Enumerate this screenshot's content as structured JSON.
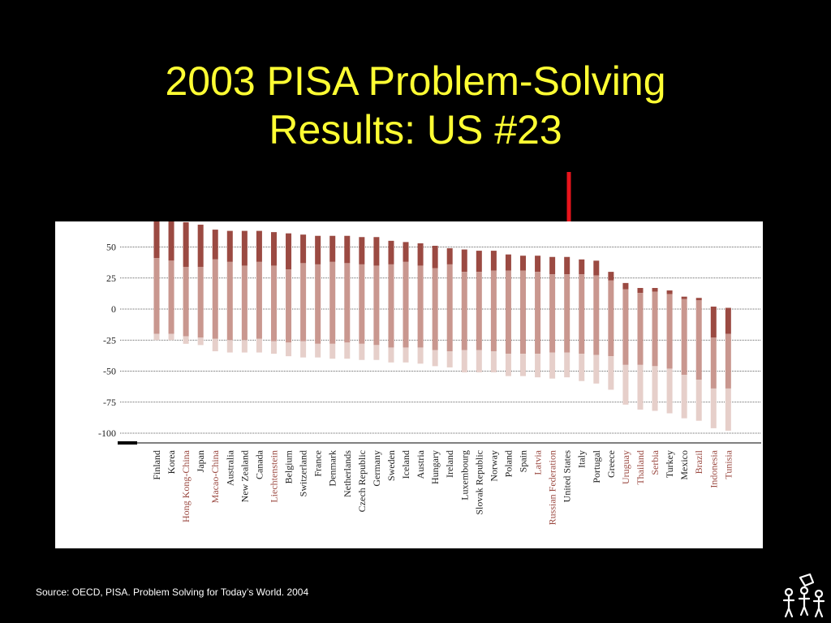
{
  "slide": {
    "title_line1": "2003 PISA Problem-Solving",
    "title_line2": "Results:  US #23",
    "source": "Source:  OECD, PISA.  Problem Solving for Today’s World.  2004"
  },
  "colors": {
    "background": "#000000",
    "title": "#ffff33",
    "arrow": "#e8141c",
    "bar_top": "#9b4a42",
    "bar_mid": "#c9978f",
    "bar_low": "#e6cfca",
    "highlight_label": "#9b4a42",
    "label": "#222222"
  },
  "icons": {
    "arrow": "down-arrow-icon",
    "logo": "family-logo-icon"
  },
  "chart_data": {
    "type": "bar",
    "subtype": "stacked-range",
    "ylim": [
      -110,
      75
    ],
    "yticks": [
      50,
      25,
      0,
      -25,
      -50,
      -75,
      -100
    ],
    "grid": true,
    "categories": [
      "Finland",
      "Korea",
      "Hong Kong-China",
      "Japan",
      "Macao-China",
      "Australia",
      "New Zealand",
      "Canada",
      "Liechtenstein",
      "Belgium",
      "Switzerland",
      "France",
      "Denmark",
      "Netherlands",
      "Czech Republic",
      "Germany",
      "Sweden",
      "Iceland",
      "Austria",
      "Hungary",
      "Ireland",
      "Luxembourg",
      "Slovak Republic",
      "Norway",
      "Poland",
      "Spain",
      "Latvia",
      "Russian Federation",
      "United States",
      "Italy",
      "Portugal",
      "Greece",
      "Uruguay",
      "Thailand",
      "Serbia",
      "Turkey",
      "Mexico",
      "Brazil",
      "Indonesia",
      "Tunisia"
    ],
    "highlighted": [
      "Hong Kong-China",
      "Macao-China",
      "Liechtenstein",
      "Latvia",
      "Russian Federation",
      "Uruguay",
      "Thailand",
      "Serbia",
      "Brazil",
      "Indonesia",
      "Tunisia"
    ],
    "series": [
      {
        "values": [
          72,
          72,
          70,
          68,
          64,
          63,
          63,
          63,
          62,
          61,
          60,
          59,
          59,
          59,
          58,
          58,
          55,
          54,
          53,
          51,
          49,
          48,
          47,
          47,
          44,
          43,
          43,
          42,
          42,
          40,
          39,
          30,
          21,
          17,
          17,
          15,
          10,
          9,
          2,
          1
        ]
      },
      {
        "values": [
          41,
          39,
          34,
          34,
          40,
          38,
          35,
          38,
          35,
          32,
          37,
          36,
          38,
          37,
          36,
          35,
          36,
          38,
          35,
          33,
          36,
          30,
          30,
          31,
          31,
          31,
          30,
          28,
          28,
          28,
          27,
          23,
          16,
          13,
          14,
          12,
          8,
          7,
          -23,
          -20
        ]
      },
      {
        "values": [
          -20,
          -20,
          -22,
          -23,
          -24,
          -25,
          -25,
          -24,
          -26,
          -27,
          -26,
          -28,
          -28,
          -27,
          -28,
          -29,
          -31,
          -31,
          -31,
          -33,
          -34,
          -33,
          -33,
          -34,
          -36,
          -36,
          -36,
          -35,
          -35,
          -36,
          -37,
          -38,
          -45,
          -45,
          -46,
          -48,
          -53,
          -57,
          -64,
          -64
        ]
      },
      {
        "values": [
          -25,
          -25,
          -28,
          -29,
          -34,
          -35,
          -35,
          -35,
          -36,
          -38,
          -39,
          -39,
          -40,
          -40,
          -41,
          -41,
          -43,
          -43,
          -44,
          -46,
          -47,
          -51,
          -51,
          -51,
          -54,
          -54,
          -55,
          -56,
          -55,
          -58,
          -60,
          -65,
          -77,
          -81,
          -82,
          -84,
          -88,
          -90,
          -96,
          -98
        ]
      }
    ]
  }
}
